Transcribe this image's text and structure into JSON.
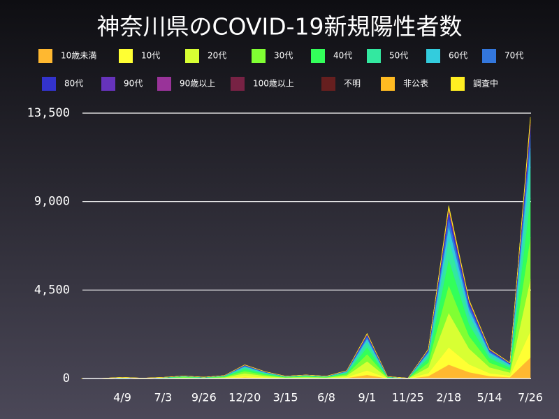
{
  "chart_data": {
    "type": "stacked-area",
    "title": "神奈川県のCOVID-19新規陽性者数",
    "categories": [
      null,
      null,
      "4/9",
      null,
      "7/3",
      null,
      "9/26",
      null,
      "12/20",
      null,
      "3/15",
      null,
      "6/8",
      null,
      "9/1",
      null,
      "11/25",
      null,
      "2/18",
      null,
      "5/14",
      null,
      "7/26"
    ],
    "series": [
      {
        "name": "10歳未満",
        "color": "#ffb830",
        "values": [
          0,
          1,
          5,
          2,
          5,
          10,
          6,
          12,
          56,
          28,
          10,
          14,
          10,
          32,
          184,
          8,
          2,
          120,
          704,
          320,
          120,
          64,
          1064
        ]
      },
      {
        "name": "10代",
        "color": "#ffff33",
        "values": [
          0,
          1,
          6,
          2,
          6,
          13,
          7,
          15,
          70,
          35,
          12,
          18,
          12,
          40,
          230,
          10,
          2,
          150,
          880,
          400,
          150,
          80,
          1330
        ]
      },
      {
        "name": "20代",
        "color": "#d8ff33",
        "values": [
          0,
          2,
          12,
          4,
          12,
          26,
          14,
          30,
          140,
          70,
          24,
          36,
          24,
          80,
          460,
          20,
          4,
          300,
          1760,
          800,
          300,
          160,
          2660
        ]
      },
      {
        "name": "30代",
        "color": "#80ff33",
        "values": [
          0,
          2,
          10,
          3,
          10,
          21,
          11,
          24,
          112,
          56,
          19,
          29,
          19,
          64,
          368,
          16,
          3,
          240,
          1408,
          640,
          240,
          128,
          2128
        ]
      },
      {
        "name": "40代",
        "color": "#33ff5a",
        "values": [
          0,
          1,
          9,
          3,
          9,
          20,
          11,
          22,
          105,
          52,
          18,
          27,
          18,
          60,
          345,
          15,
          3,
          225,
          1320,
          600,
          225,
          120,
          1995
        ]
      },
      {
        "name": "50代",
        "color": "#33e8a0",
        "values": [
          0,
          1,
          7,
          2,
          7,
          16,
          8,
          18,
          84,
          42,
          14,
          22,
          14,
          48,
          276,
          12,
          2,
          180,
          1056,
          480,
          180,
          96,
          1596
        ]
      },
      {
        "name": "60代",
        "color": "#33ccdd",
        "values": [
          0,
          1,
          4,
          1,
          4,
          9,
          5,
          11,
          49,
          25,
          8,
          13,
          8,
          28,
          161,
          7,
          1,
          105,
          616,
          280,
          105,
          56,
          931
        ]
      },
      {
        "name": "70代",
        "color": "#3377dd",
        "values": [
          0,
          1,
          3,
          1,
          3,
          7,
          4,
          8,
          35,
          18,
          6,
          9,
          6,
          20,
          115,
          5,
          1,
          75,
          440,
          200,
          75,
          40,
          665
        ]
      },
      {
        "name": "80代",
        "color": "#3333cc",
        "values": [
          0,
          0,
          2,
          1,
          2,
          4,
          2,
          4,
          21,
          10,
          4,
          5,
          4,
          12,
          69,
          3,
          1,
          45,
          264,
          120,
          45,
          24,
          399
        ]
      },
      {
        "name": "90代",
        "color": "#6633bb",
        "values": [
          0,
          0,
          1,
          0,
          1,
          1,
          1,
          2,
          7,
          4,
          1,
          2,
          1,
          4,
          23,
          1,
          0,
          15,
          88,
          40,
          15,
          8,
          133
        ]
      },
      {
        "name": "90歳以上",
        "color": "#993399",
        "values": [
          0,
          0,
          0,
          0,
          0,
          1,
          0,
          1,
          3,
          2,
          1,
          1,
          1,
          2,
          11,
          0,
          0,
          8,
          44,
          20,
          8,
          4,
          67
        ]
      },
      {
        "name": "100歳以上",
        "color": "#772244",
        "values": [
          0,
          0,
          0,
          0,
          0,
          0,
          0,
          0,
          0,
          0,
          0,
          0,
          0,
          0,
          1,
          0,
          0,
          0,
          2,
          0,
          0,
          0,
          1
        ]
      },
      {
        "name": "不明",
        "color": "#661f1f",
        "values": [
          0,
          0,
          0,
          0,
          0,
          0,
          0,
          1,
          4,
          2,
          1,
          1,
          1,
          2,
          12,
          1,
          0,
          7,
          42,
          20,
          7,
          4,
          65
        ]
      },
      {
        "name": "非公表",
        "color": "#ffbb22",
        "values": [
          0,
          0,
          1,
          0,
          1,
          1,
          1,
          1,
          7,
          3,
          1,
          2,
          1,
          4,
          23,
          1,
          0,
          15,
          88,
          40,
          15,
          8,
          133
        ]
      },
      {
        "name": "調査中",
        "color": "#ffee22",
        "values": [
          0,
          0,
          0,
          1,
          0,
          1,
          0,
          1,
          7,
          3,
          1,
          1,
          1,
          4,
          22,
          1,
          1,
          15,
          88,
          40,
          15,
          8,
          133
        ]
      }
    ],
    "ylim": [
      0,
      13500
    ],
    "yticks": [
      0,
      {
        "value": 4500,
        "label": "4,500"
      },
      {
        "value": 9000,
        "label": "9,000"
      },
      {
        "value": 13500,
        "label": "13,500"
      }
    ],
    "grid": true
  }
}
